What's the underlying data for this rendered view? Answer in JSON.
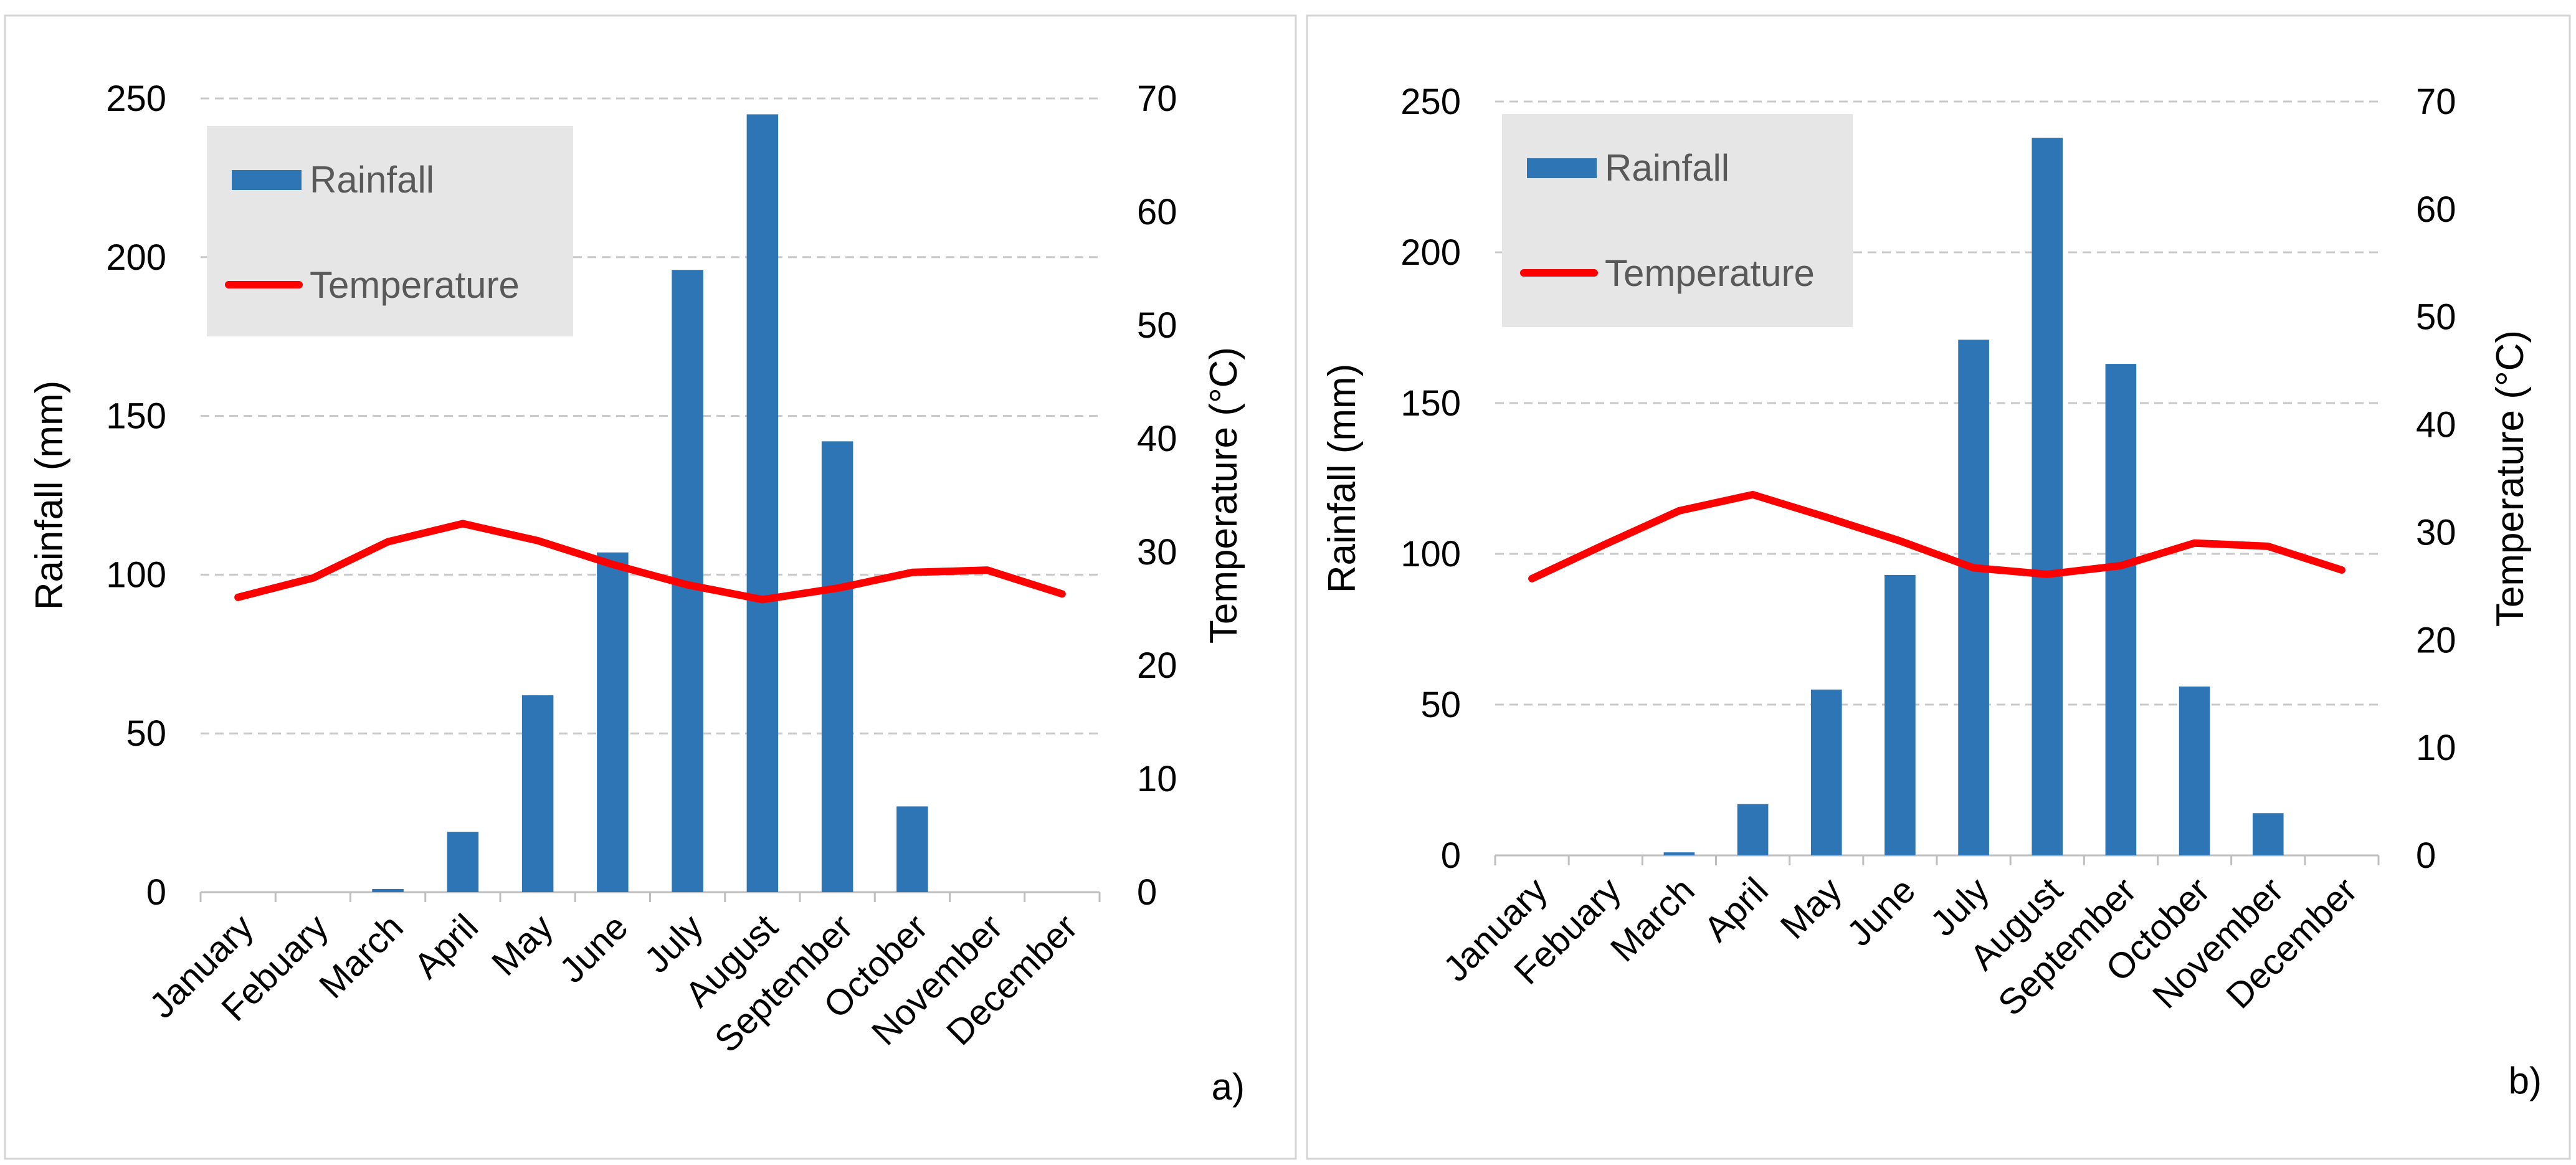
{
  "colors": {
    "rainfall": "#2e75b6",
    "temperature": "#ff0000"
  },
  "chart_data": [
    {
      "type": "bar",
      "panel_label": "a)",
      "categories": [
        "January",
        "Febuary",
        "March",
        "April",
        "May",
        "June",
        "July",
        "August",
        "September",
        "October",
        "November",
        "December"
      ],
      "series": [
        {
          "name": "Rainfall",
          "kind": "bar",
          "axis": "left",
          "values": [
            0,
            0,
            1,
            19,
            62,
            107,
            196,
            245,
            142,
            27,
            0,
            0
          ]
        },
        {
          "name": "Temperature",
          "kind": "line",
          "axis": "right",
          "values": [
            26.0,
            27.7,
            30.9,
            32.5,
            31.0,
            28.9,
            27.1,
            25.8,
            26.8,
            28.2,
            28.4,
            26.3
          ]
        }
      ],
      "ylabel": "Rainfall (mm)",
      "y2label": "Temperature (°C)",
      "ylim": [
        0,
        250
      ],
      "yticks": [
        "0",
        "50",
        "100",
        "150",
        "200",
        "250"
      ],
      "y2lim": [
        0,
        70
      ],
      "y2ticks": [
        "0",
        "10",
        "20",
        "30",
        "40",
        "50",
        "60",
        "70"
      ],
      "legend": {
        "position": "top-left",
        "entries": [
          "Rainfall",
          "Temperature"
        ]
      },
      "grid": true
    },
    {
      "type": "bar",
      "panel_label": "b)",
      "categories": [
        "January",
        "Febuary",
        "March",
        "April",
        "May",
        "June",
        "July",
        "August",
        "September",
        "October",
        "November",
        "December"
      ],
      "series": [
        {
          "name": "Rainfall",
          "kind": "bar",
          "axis": "left",
          "values": [
            0,
            0,
            1,
            17,
            55,
            93,
            171,
            238,
            163,
            56,
            14,
            0
          ]
        },
        {
          "name": "Temperature",
          "kind": "line",
          "axis": "right",
          "values": [
            25.7,
            28.9,
            32.0,
            33.5,
            31.4,
            29.2,
            26.7,
            26.1,
            26.9,
            29.0,
            28.7,
            26.5
          ]
        }
      ],
      "ylabel": "Rainfall (mm)",
      "y2label": "Temperature (°C)",
      "ylim": [
        0,
        250
      ],
      "yticks": [
        "0",
        "50",
        "100",
        "150",
        "200",
        "250"
      ],
      "y2lim": [
        0,
        70
      ],
      "y2ticks": [
        "0",
        "10",
        "20",
        "30",
        "40",
        "50",
        "60",
        "70"
      ],
      "legend": {
        "position": "top-left",
        "entries": [
          "Rainfall",
          "Temperature"
        ]
      },
      "grid": true
    }
  ]
}
